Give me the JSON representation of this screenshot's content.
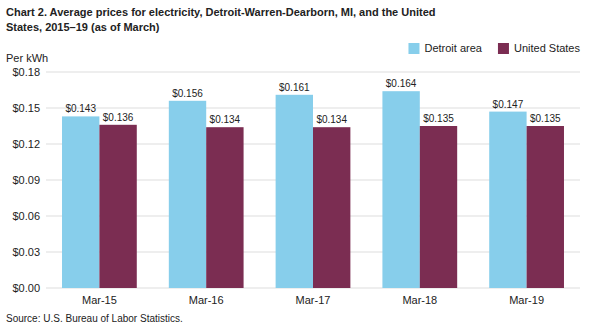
{
  "chart_data": {
    "type": "bar",
    "title": "Chart 2. Average prices for electricity, Detroit-Warren-Dearborn, MI, and the United",
    "subtitle": "States, 2015–19  (as of March)",
    "y_label": "Per kWh",
    "source": "Source: U.S. Bureau of Labor Statistics.",
    "categories": [
      "Mar-15",
      "Mar-16",
      "Mar-17",
      "Mar-18",
      "Mar-19"
    ],
    "series": [
      {
        "name": "Detroit area",
        "color": "#87CEEB",
        "values": [
          0.143,
          0.156,
          0.161,
          0.164,
          0.147
        ],
        "value_labels": [
          "$0.143",
          "$0.156",
          "$0.161",
          "$0.164",
          "$0.147"
        ]
      },
      {
        "name": "United States",
        "color": "#7B2D52",
        "values": [
          0.136,
          0.134,
          0.134,
          0.135,
          0.135
        ],
        "value_labels": [
          "$0.136",
          "$0.134",
          "$0.134",
          "$0.135",
          "$0.135"
        ]
      }
    ],
    "ylim": [
      0,
      0.18
    ],
    "yticks": [
      {
        "value": 0.0,
        "label": "$0.00"
      },
      {
        "value": 0.03,
        "label": "$0.03"
      },
      {
        "value": 0.06,
        "label": "$0.06"
      },
      {
        "value": 0.09,
        "label": "$0.09"
      },
      {
        "value": 0.12,
        "label": "$0.12"
      },
      {
        "value": 0.15,
        "label": "$0.15"
      },
      {
        "value": 0.18,
        "label": "$0.18"
      }
    ],
    "grid": true,
    "legend": "upper right",
    "data_labels": true
  }
}
